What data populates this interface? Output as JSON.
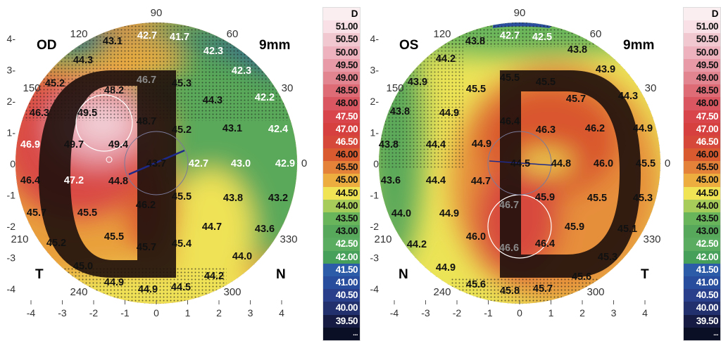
{
  "colorscale": {
    "unit": "D",
    "more": "...",
    "entries": [
      {
        "label": "51.00",
        "color": "#f8e0e6"
      },
      {
        "label": "50.50",
        "color": "#f2c8d0"
      },
      {
        "label": "50.00",
        "color": "#edb2bd"
      },
      {
        "label": "49.50",
        "color": "#e89aa7"
      },
      {
        "label": "49.00",
        "color": "#e38491"
      },
      {
        "label": "48.50",
        "color": "#de6c77"
      },
      {
        "label": "48.00",
        "color": "#da5660"
      },
      {
        "label": "47.50",
        "color": "#d8464b"
      },
      {
        "label": "47.00",
        "color": "#d64140"
      },
      {
        "label": "46.50",
        "color": "#d5483a"
      },
      {
        "label": "46.00",
        "color": "#d95a2f"
      },
      {
        "label": "45.50",
        "color": "#e4823a"
      },
      {
        "label": "45.00",
        "color": "#eeae3f"
      },
      {
        "label": "44.50",
        "color": "#f0e455"
      },
      {
        "label": "44.00",
        "color": "#a8cc5a"
      },
      {
        "label": "43.50",
        "color": "#68b55b"
      },
      {
        "label": "43.00",
        "color": "#57a85a"
      },
      {
        "label": "42.50",
        "color": "#5aad60"
      },
      {
        "label": "42.00",
        "color": "#46a05a"
      },
      {
        "label": "41.50",
        "color": "#2c5ca8"
      },
      {
        "label": "41.00",
        "color": "#284d9c"
      },
      {
        "label": "40.50",
        "color": "#2a3f8c"
      },
      {
        "label": "40.00",
        "color": "#22306e"
      },
      {
        "label": "39.50",
        "color": "#151b42"
      }
    ],
    "more_color": "#0b0f25"
  },
  "axis": {
    "y_ticks": [
      "4-",
      "3-",
      "2-",
      "1-",
      "0",
      "-1",
      "-2",
      "-3",
      "-4"
    ],
    "x_ticks": [
      "-4",
      "-3",
      "-2",
      "-1",
      "0",
      "1",
      "2",
      "3",
      "4"
    ],
    "angles": [
      "90",
      "120",
      "60",
      "150",
      "30",
      "0",
      "210",
      "330",
      "240",
      "300"
    ]
  },
  "maps": [
    {
      "eye": "OD",
      "diameter": "9mm",
      "left_side": "T",
      "right_side": "N",
      "values": [
        "42.7",
        "41.7",
        "43.1",
        "42.3",
        "44.3",
        "42.3",
        "46.7",
        "45.3",
        "45.2",
        "48.2",
        "44.3",
        "42.2",
        "46.3",
        "49.5",
        "48.7",
        "45.2",
        "43.1",
        "42.4",
        "46.9",
        "49.7",
        "49.4",
        "43.7",
        "42.7",
        "43.0",
        "42.9",
        "46.4",
        "47.2",
        "44.8",
        "45.5",
        "43.8",
        "43.2",
        "46.2",
        "45.7",
        "45.5",
        "44.7",
        "43.6",
        "45.5",
        "45.2",
        "45.7",
        "45.4",
        "44.0",
        "45.0",
        "44.2",
        "44.9",
        "44.9",
        "44.5"
      ]
    },
    {
      "eye": "OS",
      "diameter": "9mm",
      "left_side": "N",
      "right_side": "T",
      "values": [
        "42.7",
        "42.5",
        "43.8",
        "43.8",
        "44.2",
        "43.9",
        "43.9",
        "45.5",
        "45.5",
        "45.5",
        "44.3",
        "45.7",
        "43.8",
        "44.9",
        "46.4",
        "46.3",
        "46.2",
        "44.9",
        "43.8",
        "44.4",
        "44.9",
        "44.5",
        "44.8",
        "46.0",
        "45.5",
        "43.6",
        "44.4",
        "44.7",
        "45.9",
        "45.5",
        "45.3",
        "46.7",
        "44.0",
        "44.9",
        "45.9",
        "45.1",
        "46.0",
        "44.2",
        "46.6",
        "46.4",
        "45.3",
        "44.9",
        "45.6",
        "45.6",
        "45.8",
        "45.7"
      ]
    }
  ]
}
